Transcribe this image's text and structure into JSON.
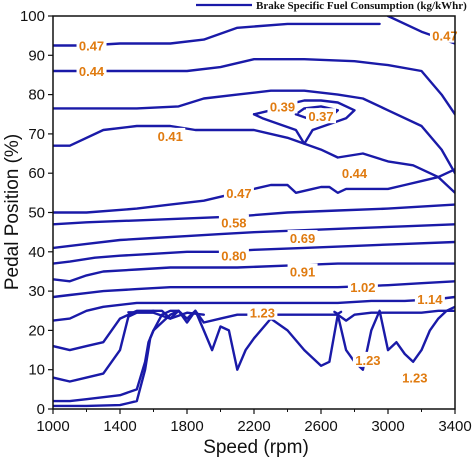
{
  "chart_data": {
    "type": "contour",
    "legend": {
      "label": "Brake Specific Fuel Consumption (kg/kWhr)",
      "position": "top-right",
      "line_color": "#1a1aa8"
    },
    "line_color": "#1a1aa8",
    "label_color": "#e07b10",
    "xlabel": "Speed (rpm)",
    "ylabel": "Pedal Position (%)",
    "xlim": [
      1000,
      3400
    ],
    "ylim": [
      0,
      100
    ],
    "xticks": [
      "1000",
      "1400",
      "1800",
      "2200",
      "2600",
      "3000",
      "3400"
    ],
    "yticks": [
      "0",
      "10",
      "20",
      "30",
      "40",
      "50",
      "60",
      "70",
      "80",
      "90",
      "100"
    ],
    "grid": false,
    "contours": [
      {
        "level": "0.47",
        "points": [
          [
            1000,
            92.5
          ],
          [
            1200,
            92.5
          ],
          [
            1400,
            93
          ],
          [
            1700,
            93
          ],
          [
            1900,
            94
          ],
          [
            2100,
            97
          ],
          [
            2400,
            98
          ],
          [
            2600,
            98
          ],
          [
            2800,
            98
          ],
          [
            2950,
            98
          ]
        ]
      },
      {
        "level": "0.47",
        "points": [
          [
            3000,
            100
          ],
          [
            3200,
            96
          ],
          [
            3400,
            93
          ]
        ]
      },
      {
        "level": "0.44",
        "points": [
          [
            1000,
            86
          ],
          [
            1200,
            86
          ],
          [
            1500,
            86
          ],
          [
            1800,
            86
          ],
          [
            2000,
            87
          ],
          [
            2200,
            89
          ],
          [
            2500,
            89
          ],
          [
            2800,
            88.5
          ],
          [
            3000,
            87.5
          ],
          [
            3200,
            86
          ],
          [
            3320,
            80
          ],
          [
            3400,
            75
          ]
        ]
      },
      {
        "level": "0.41",
        "points": [
          [
            1000,
            76.5
          ],
          [
            1200,
            76.5
          ],
          [
            1500,
            76.5
          ],
          [
            1750,
            77
          ],
          [
            1900,
            79
          ],
          [
            2100,
            80
          ],
          [
            2300,
            81
          ],
          [
            2500,
            81
          ],
          [
            2700,
            80
          ],
          [
            2850,
            79
          ],
          [
            3000,
            76
          ],
          [
            3200,
            72
          ],
          [
            3320,
            66
          ],
          [
            3400,
            60
          ]
        ]
      },
      {
        "level": "0.41",
        "points": [
          [
            1000,
            67
          ],
          [
            1100,
            67
          ],
          [
            1300,
            71
          ],
          [
            1500,
            72
          ],
          [
            1700,
            72
          ],
          [
            1850,
            71
          ],
          [
            2000,
            71
          ],
          [
            2200,
            71
          ],
          [
            2400,
            69
          ],
          [
            2600,
            66
          ],
          [
            2700,
            64
          ],
          [
            2850,
            65
          ],
          [
            3000,
            63
          ],
          [
            3150,
            62
          ],
          [
            3300,
            59
          ],
          [
            3400,
            55
          ]
        ]
      },
      {
        "level": "0.39",
        "points": [
          [
            2200,
            75
          ],
          [
            2300,
            76
          ],
          [
            2400,
            77.5
          ],
          [
            2500,
            78.5
          ],
          [
            2600,
            78.5
          ],
          [
            2700,
            78
          ],
          [
            2800,
            76
          ],
          [
            2750,
            74
          ],
          [
            2650,
            72.5
          ],
          [
            2550,
            71
          ],
          [
            2500,
            67.5
          ],
          [
            2450,
            71
          ],
          [
            2350,
            72.5
          ],
          [
            2250,
            74
          ],
          [
            2200,
            75
          ]
        ]
      },
      {
        "level": "0.37",
        "points": [
          [
            2450,
            75
          ],
          [
            2500,
            76.5
          ],
          [
            2600,
            77
          ],
          [
            2700,
            76
          ],
          [
            2650,
            74
          ],
          [
            2550,
            73.5
          ],
          [
            2450,
            75
          ]
        ]
      },
      {
        "level": "0.47",
        "points": [
          [
            1000,
            50
          ],
          [
            1200,
            50
          ],
          [
            1500,
            51
          ],
          [
            1700,
            52
          ],
          [
            1900,
            53
          ],
          [
            2100,
            55
          ],
          [
            2300,
            57
          ],
          [
            2400,
            57
          ],
          [
            2450,
            55
          ],
          [
            2550,
            56
          ],
          [
            2600,
            56.5
          ],
          [
            2650,
            56.5
          ],
          [
            2700,
            55
          ],
          [
            2750,
            56
          ],
          [
            2850,
            56
          ],
          [
            3000,
            56
          ],
          [
            3100,
            57
          ],
          [
            3200,
            58
          ],
          [
            3300,
            59
          ],
          [
            3400,
            61
          ]
        ]
      },
      {
        "level": "0.58",
        "points": [
          [
            1000,
            47
          ],
          [
            1200,
            47.5
          ],
          [
            1500,
            48
          ],
          [
            1800,
            48.5
          ],
          [
            2100,
            49
          ],
          [
            2400,
            50
          ],
          [
            2700,
            50.5
          ],
          [
            3000,
            51
          ],
          [
            3200,
            51.5
          ],
          [
            3400,
            52
          ]
        ]
      },
      {
        "level": "0.69",
        "points": [
          [
            1000,
            41
          ],
          [
            1200,
            42
          ],
          [
            1400,
            43
          ],
          [
            1600,
            43.5
          ],
          [
            1800,
            44
          ],
          [
            2000,
            44.5
          ],
          [
            2200,
            45
          ],
          [
            2500,
            45.5
          ],
          [
            2800,
            46
          ],
          [
            3100,
            46.5
          ],
          [
            3400,
            47
          ]
        ]
      },
      {
        "level": "0.80",
        "points": [
          [
            1000,
            37
          ],
          [
            1100,
            37.5
          ],
          [
            1250,
            38.5
          ],
          [
            1400,
            39
          ],
          [
            1600,
            39.5
          ],
          [
            1800,
            40
          ],
          [
            2000,
            40
          ],
          [
            2200,
            40.5
          ],
          [
            2500,
            41
          ],
          [
            2800,
            41.5
          ],
          [
            3100,
            42
          ],
          [
            3400,
            42.5
          ]
        ]
      },
      {
        "level": "0.91",
        "points": [
          [
            1000,
            33
          ],
          [
            1100,
            32.5
          ],
          [
            1200,
            34
          ],
          [
            1300,
            35
          ],
          [
            1500,
            35.5
          ],
          [
            1700,
            36
          ],
          [
            1900,
            36
          ],
          [
            2100,
            36
          ],
          [
            2400,
            36.5
          ],
          [
            2700,
            37
          ],
          [
            3000,
            37
          ],
          [
            3200,
            37
          ],
          [
            3400,
            37
          ]
        ]
      },
      {
        "level": "1.02",
        "points": [
          [
            1000,
            28.5
          ],
          [
            1100,
            29
          ],
          [
            1200,
            29.5
          ],
          [
            1300,
            30
          ],
          [
            1500,
            30.5
          ],
          [
            1700,
            31
          ],
          [
            1900,
            31
          ],
          [
            2100,
            31
          ],
          [
            2400,
            31
          ],
          [
            2700,
            31
          ],
          [
            3000,
            31.5
          ],
          [
            3200,
            32
          ],
          [
            3400,
            32.5
          ]
        ]
      },
      {
        "level": "1.14",
        "points": [
          [
            1000,
            22.5
          ],
          [
            1100,
            23
          ],
          [
            1200,
            25
          ],
          [
            1300,
            26
          ],
          [
            1500,
            27
          ],
          [
            1700,
            27
          ],
          [
            1900,
            27
          ],
          [
            2100,
            27
          ],
          [
            2300,
            27
          ],
          [
            2500,
            27
          ],
          [
            2700,
            27
          ],
          [
            2900,
            27.5
          ],
          [
            3100,
            27.5
          ],
          [
            3300,
            28
          ],
          [
            3400,
            28.5
          ]
        ]
      },
      {
        "level": "1.23",
        "points": [
          [
            1000,
            16
          ],
          [
            1100,
            15
          ],
          [
            1200,
            16
          ],
          [
            1300,
            17
          ],
          [
            1400,
            23
          ],
          [
            1500,
            25
          ],
          [
            1600,
            25
          ],
          [
            1650,
            25
          ],
          [
            1700,
            23
          ],
          [
            1750,
            25
          ],
          [
            1800,
            23
          ],
          [
            1850,
            25
          ],
          [
            1900,
            22
          ],
          [
            2000,
            23
          ],
          [
            2100,
            24
          ],
          [
            2200,
            24
          ],
          [
            2300,
            24
          ],
          [
            2400,
            24
          ],
          [
            2500,
            24
          ],
          [
            2600,
            24
          ],
          [
            2700,
            24
          ],
          [
            2750,
            22.5
          ],
          [
            2800,
            24
          ],
          [
            2900,
            24.5
          ],
          [
            3000,
            24.5
          ],
          [
            3100,
            24.5
          ],
          [
            3200,
            24.5
          ],
          [
            3300,
            25
          ],
          [
            3400,
            25
          ]
        ]
      },
      {
        "level": "1.23",
        "points": [
          [
            1000,
            8
          ],
          [
            1100,
            7
          ],
          [
            1200,
            8
          ],
          [
            1300,
            9
          ],
          [
            1400,
            15
          ],
          [
            1450,
            23.5
          ],
          [
            1500,
            24.5
          ],
          [
            1550,
            24.5
          ],
          [
            1600,
            24.5
          ],
          [
            1700,
            23
          ],
          [
            1800,
            24.5
          ],
          [
            1900,
            24
          ]
        ]
      },
      {
        "level": "1.23",
        "points": [
          [
            1000,
            2
          ],
          [
            1100,
            2
          ],
          [
            1200,
            2.5
          ],
          [
            1300,
            3
          ],
          [
            1400,
            3.5
          ],
          [
            1500,
            5
          ],
          [
            1550,
            12
          ],
          [
            1570,
            17
          ],
          [
            1600,
            20
          ],
          [
            1650,
            24
          ],
          [
            1700,
            25
          ],
          [
            1750,
            25
          ]
        ]
      },
      {
        "level": "1.23",
        "points": [
          [
            1000,
            0.8
          ],
          [
            1200,
            0.8
          ],
          [
            1400,
            1
          ],
          [
            1500,
            2
          ],
          [
            1550,
            10
          ],
          [
            1580,
            18
          ],
          [
            1600,
            20
          ],
          [
            1650,
            22
          ],
          [
            1700,
            24
          ],
          [
            1750,
            25
          ],
          [
            1800,
            22
          ],
          [
            1850,
            25
          ],
          [
            1900,
            20
          ],
          [
            1950,
            15
          ],
          [
            2000,
            21
          ],
          [
            2050,
            20
          ],
          [
            2100,
            10
          ],
          [
            2150,
            15
          ],
          [
            2200,
            18
          ],
          [
            2300,
            23
          ],
          [
            2400,
            20
          ],
          [
            2500,
            15
          ],
          [
            2600,
            11
          ],
          [
            2650,
            12
          ],
          [
            2700,
            24
          ],
          [
            2750,
            15
          ],
          [
            2800,
            12
          ],
          [
            2850,
            10
          ],
          [
            2900,
            20
          ],
          [
            2950,
            25
          ],
          [
            3000,
            15
          ],
          [
            3050,
            17
          ],
          [
            3100,
            14
          ],
          [
            3150,
            12
          ],
          [
            3200,
            15
          ],
          [
            3250,
            20
          ],
          [
            3300,
            23
          ],
          [
            3350,
            25
          ],
          [
            3400,
            26
          ]
        ]
      },
      {
        "level": "",
        "points": [
          [
            1450,
            24.6
          ],
          [
            1550,
            24.6
          ],
          [
            1600,
            25
          ]
        ]
      },
      {
        "level": "",
        "points": [
          [
            2680,
            24.7
          ],
          [
            2700,
            24.2
          ],
          [
            2720,
            24.7
          ]
        ]
      }
    ],
    "labels": [
      {
        "text": "0.47",
        "x": 1230,
        "y": 92.5
      },
      {
        "text": "0.47",
        "x": 3340,
        "y": 95
      },
      {
        "text": "0.44",
        "x": 1230,
        "y": 86
      },
      {
        "text": "0.39",
        "x": 2370,
        "y": 77
      },
      {
        "text": "0.37",
        "x": 2600,
        "y": 74.5
      },
      {
        "text": "0.41",
        "x": 1700,
        "y": 69.5
      },
      {
        "text": "0.44",
        "x": 2800,
        "y": 60
      },
      {
        "text": "0.47",
        "x": 2110,
        "y": 55
      },
      {
        "text": "0.58",
        "x": 2080,
        "y": 47.5
      },
      {
        "text": "0.69",
        "x": 2490,
        "y": 43.5
      },
      {
        "text": "0.80",
        "x": 2080,
        "y": 39
      },
      {
        "text": "0.91",
        "x": 2490,
        "y": 35
      },
      {
        "text": "1.02",
        "x": 2850,
        "y": 31
      },
      {
        "text": "1.14",
        "x": 3250,
        "y": 28
      },
      {
        "text": "1.23",
        "x": 2250,
        "y": 24.5
      },
      {
        "text": "1.23",
        "x": 2880,
        "y": 12.5
      },
      {
        "text": "1.23",
        "x": 3160,
        "y": 8
      }
    ]
  }
}
